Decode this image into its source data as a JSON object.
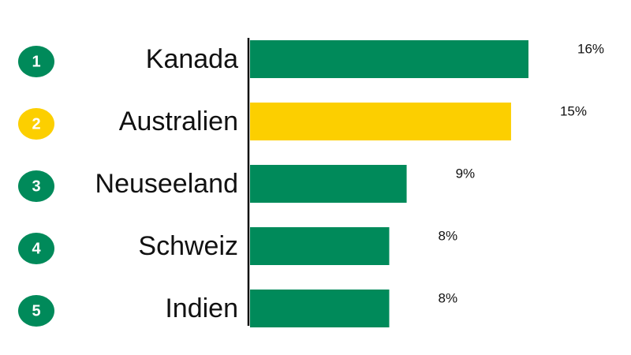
{
  "chart_data": {
    "type": "bar",
    "orientation": "horizontal",
    "categories": [
      "Kanada",
      "Australien",
      "Neuseeland",
      "Schweiz",
      "Indien"
    ],
    "ranks": [
      1,
      2,
      3,
      4,
      5
    ],
    "values": [
      16,
      15,
      9,
      8,
      8
    ],
    "value_labels": [
      "16%",
      "15%",
      "9%",
      "8%",
      "8%"
    ],
    "colors": [
      "#008a5a",
      "#fccf00",
      "#008a5a",
      "#008a5a",
      "#008a5a"
    ]
  }
}
